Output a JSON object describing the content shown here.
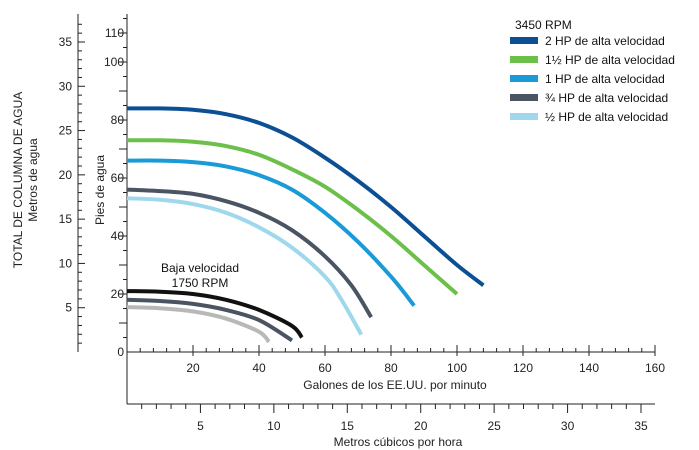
{
  "chart_data": {
    "type": "line",
    "title": "",
    "axes": {
      "y_feet": {
        "label": "Pies de agua",
        "range": [
          0,
          115
        ],
        "ticks": [
          0,
          20,
          40,
          60,
          80,
          100,
          110
        ]
      },
      "y_meters": {
        "label_line1": "TOTAL DE COLUMNA DE AGUA",
        "label_line2": "Metros de agua",
        "range": [
          0,
          35
        ],
        "ticks": [
          5,
          10,
          15,
          20,
          25,
          30,
          35
        ]
      },
      "x_gpm": {
        "label": "Galones de los EE.UU. por minuto",
        "range": [
          0,
          160
        ],
        "ticks": [
          20,
          40,
          60,
          80,
          100,
          120,
          140,
          160
        ]
      },
      "x_m3h": {
        "label": "Metros cúbicos por hora",
        "range": [
          0,
          36
        ],
        "ticks": [
          5,
          10,
          15,
          20,
          25,
          30,
          35
        ]
      }
    },
    "legend": {
      "title": "3450 RPM",
      "position": "top-right"
    },
    "annotation": {
      "line1": "Baja velocidad",
      "line2": "1750 RPM"
    },
    "series": [
      {
        "name": "2 HP de alta velocidad",
        "color": "#0b4f94",
        "group": "high",
        "x": [
          0,
          10,
          20,
          30,
          40,
          50,
          60,
          70,
          80,
          90,
          100,
          108
        ],
        "y": [
          84,
          84,
          83.5,
          82,
          79,
          74,
          67,
          59,
          50,
          40,
          30,
          23
        ]
      },
      {
        "name": "1½ HP de alta velocidad",
        "color": "#6cc04a",
        "group": "high",
        "x": [
          0,
          10,
          20,
          30,
          40,
          50,
          60,
          70,
          80,
          90,
          100
        ],
        "y": [
          73,
          73,
          72.5,
          71,
          68,
          63,
          57,
          49,
          40,
          30,
          20
        ]
      },
      {
        "name": "1 HP de alta velocidad",
        "color": "#1a9bd7",
        "group": "high",
        "x": [
          0,
          10,
          20,
          30,
          40,
          50,
          60,
          70,
          80,
          87
        ],
        "y": [
          66,
          66,
          65.5,
          64,
          61,
          56,
          48,
          38,
          26,
          16
        ]
      },
      {
        "name": "¾ HP de alta velocidad",
        "color": "#4a5462",
        "group": "high",
        "x": [
          0,
          10,
          20,
          30,
          40,
          50,
          60,
          68,
          74
        ],
        "y": [
          56,
          55.5,
          54.5,
          52,
          48,
          42,
          33,
          23,
          12
        ]
      },
      {
        "name": "½ HP de alta velocidad",
        "color": "#9fd8ec",
        "group": "high",
        "x": [
          0,
          10,
          20,
          30,
          40,
          50,
          60,
          65,
          71
        ],
        "y": [
          53,
          52.5,
          51,
          48,
          43,
          36,
          26,
          18,
          6
        ]
      },
      {
        "name": "",
        "color": "#111111",
        "group": "low",
        "x": [
          0,
          10,
          20,
          30,
          40,
          50,
          53
        ],
        "y": [
          21,
          20.8,
          20,
          18,
          14.5,
          9,
          5
        ]
      },
      {
        "name": "",
        "color": "#4a5462",
        "group": "low",
        "x": [
          0,
          10,
          20,
          30,
          40,
          50
        ],
        "y": [
          18,
          17.6,
          16.6,
          14.5,
          11,
          4
        ]
      },
      {
        "name": "",
        "color": "#b8b8b8",
        "group": "low",
        "x": [
          0,
          10,
          20,
          30,
          40,
          43
        ],
        "y": [
          15.5,
          15.1,
          14,
          11.5,
          7,
          3.5
        ]
      }
    ]
  }
}
